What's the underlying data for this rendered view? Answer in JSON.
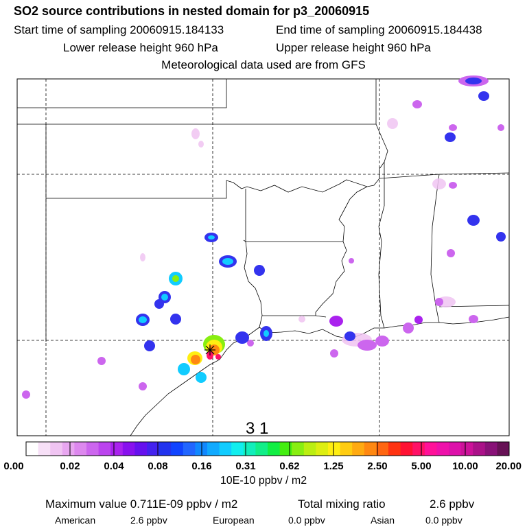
{
  "header": {
    "title": "SO2 source contributions in nested domain for p3_20060915",
    "start": "Start time of sampling 20060915.184133",
    "end": "End time of sampling 20060915.184438",
    "lower": "Lower release height  960 hPa",
    "upper": "Upper release height  960 hPa",
    "met": "Meteorological data used are from GFS"
  },
  "map": {
    "frame_label": "3 1",
    "marker": "+"
  },
  "colorbar": {
    "ticks": [
      "0.00",
      "0.02",
      "0.04",
      "0.08",
      "0.16",
      "0.31",
      "0.62",
      "1.25",
      "2.50",
      "5.00",
      "10.00",
      "20.00"
    ],
    "units": "10E-10 ppbv / m2",
    "colors": [
      "#ffffff",
      "#f7e0f7",
      "#f0c4f2",
      "#e8a6f0",
      "#dd88ee",
      "#cc66ee",
      "#bb44ee",
      "#aa22ee",
      "#8811ee",
      "#6611ee",
      "#4422ee",
      "#2233ee",
      "#1144ff",
      "#2266ff",
      "#1188ff",
      "#11aaff",
      "#11ccff",
      "#11eeee",
      "#11eebb",
      "#11ee88",
      "#11ee44",
      "#44ee11",
      "#88ee11",
      "#bbee11",
      "#ddee11",
      "#ffee11",
      "#ffcc11",
      "#ffaa11",
      "#ff8811",
      "#ff6611",
      "#ff3311",
      "#ff1133",
      "#ff1166",
      "#ff1199",
      "#ee11aa",
      "#dd11aa",
      "#cc1199",
      "#aa1188",
      "#881177",
      "#661155"
    ]
  },
  "footer": {
    "max_label": "Maximum value  0.711E-09 ppbv / m2",
    "total_label": "Total mixing ratio",
    "total_value": "2.6 ppbv",
    "american_label": "American",
    "american_value": "2.6 ppbv",
    "european_label": "European",
    "european_value": "0.0 ppbv",
    "asian_label": "Asian",
    "asian_value": "0.0 ppbv"
  },
  "chart_data": {
    "type": "heatmap",
    "title": "SO2 source contributions in nested domain for p3_20060915",
    "color_scale_breaks": [
      0.0,
      0.02,
      0.04,
      0.08,
      0.16,
      0.31,
      0.62,
      1.25,
      2.5,
      5.0,
      10.0,
      20.0
    ],
    "color_scale_units": "10E-10 ppbv / m2",
    "maximum_value": "0.711E-09 ppbv / m2",
    "total_mixing_ratio_ppbv": 2.6,
    "contributions_ppbv": {
      "American": 2.6,
      "European": 0.0,
      "Asian": 0.0
    }
  }
}
